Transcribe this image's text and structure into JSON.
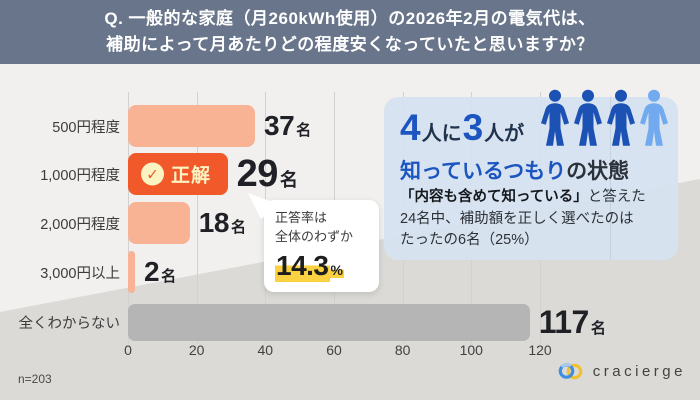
{
  "header": {
    "title_line1": "Q. 一般的な家庭（月260kWh使用）の2026年2月の電気代は、",
    "title_line2": "補助によって月あたりどの程度安くなっていたと思いますか？"
  },
  "chart_data": {
    "type": "bar",
    "orientation": "horizontal",
    "categories": [
      "500円程度",
      "1,000円程度",
      "2,000円程度",
      "3,000円以上",
      "全くわからない"
    ],
    "values": [
      37,
      29,
      18,
      2,
      117
    ],
    "unit": "名",
    "xlim": [
      0,
      120
    ],
    "x_ticks": [
      "0",
      "20",
      "40",
      "60",
      "80",
      "100",
      "120"
    ],
    "grid": true,
    "sample_size": "n=203",
    "correct_answer": {
      "index": 1,
      "category": "1,000円程度",
      "badge": "正解",
      "check_icon": "✓"
    },
    "colors": {
      "bar_default": "#f8b294",
      "bar_correct": "#f2592a",
      "bar_unknown": "#b5b5b5",
      "header_bg": "#68758a",
      "accent_blue": "#1b55c0",
      "highlight_yellow": "#fad141"
    }
  },
  "annotation_bubble": {
    "line1": "正答率は",
    "line2": "全体のわずか",
    "value": "14.3",
    "unit": "%"
  },
  "callout": {
    "headline_num1": "4",
    "headline_mid1": "人に",
    "headline_num2": "3",
    "headline_mid2": "人が",
    "headline2_blue": "知っているつもり",
    "headline2_dark": "の状態",
    "body_bold": "「内容も含めて知っている」",
    "body_after": "と答えた",
    "body_line2": "24名中、補助額を正しく選べたのは",
    "body_line3": "たったの6名（25%）",
    "persons_total": 4,
    "persons_highlighted": 3
  },
  "footer": {
    "brand": "cracierge"
  }
}
